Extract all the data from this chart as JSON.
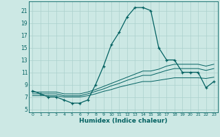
{
  "xlabel": "Humidex (Indice chaleur)",
  "bg_color": "#cce8e4",
  "grid_color": "#aad0cc",
  "line_color": "#006060",
  "xlim": [
    -0.5,
    23.5
  ],
  "ylim": [
    4.5,
    22.5
  ],
  "xticks": [
    0,
    1,
    2,
    3,
    4,
    5,
    6,
    7,
    8,
    9,
    10,
    11,
    12,
    13,
    14,
    15,
    16,
    17,
    18,
    19,
    20,
    21,
    22,
    23
  ],
  "yticks": [
    5,
    7,
    9,
    11,
    13,
    15,
    17,
    19,
    21
  ],
  "main_curve": [
    8.0,
    7.5,
    7.0,
    7.0,
    6.5,
    6.0,
    6.0,
    6.5,
    9.0,
    12.0,
    15.5,
    17.5,
    20.0,
    21.5,
    21.5,
    21.0,
    15.0,
    13.0,
    13.0,
    11.0,
    11.0,
    11.0,
    8.5,
    9.5
  ],
  "line2": [
    7.8,
    7.8,
    7.8,
    7.8,
    7.5,
    7.5,
    7.5,
    7.8,
    8.2,
    8.7,
    9.2,
    9.7,
    10.2,
    10.7,
    11.2,
    11.2,
    11.5,
    12.0,
    12.3,
    12.3,
    12.3,
    12.3,
    12.0,
    12.3
  ],
  "line3": [
    7.5,
    7.5,
    7.5,
    7.5,
    7.2,
    7.2,
    7.2,
    7.5,
    7.9,
    8.3,
    8.8,
    9.2,
    9.7,
    10.1,
    10.5,
    10.5,
    10.9,
    11.3,
    11.6,
    11.6,
    11.6,
    11.6,
    11.3,
    11.6
  ],
  "line4": [
    7.2,
    7.2,
    7.2,
    7.2,
    7.0,
    7.0,
    7.0,
    7.2,
    7.5,
    7.9,
    8.2,
    8.6,
    8.9,
    9.2,
    9.5,
    9.5,
    9.7,
    9.9,
    10.1,
    10.1,
    10.1,
    10.1,
    10.0,
    10.2
  ]
}
